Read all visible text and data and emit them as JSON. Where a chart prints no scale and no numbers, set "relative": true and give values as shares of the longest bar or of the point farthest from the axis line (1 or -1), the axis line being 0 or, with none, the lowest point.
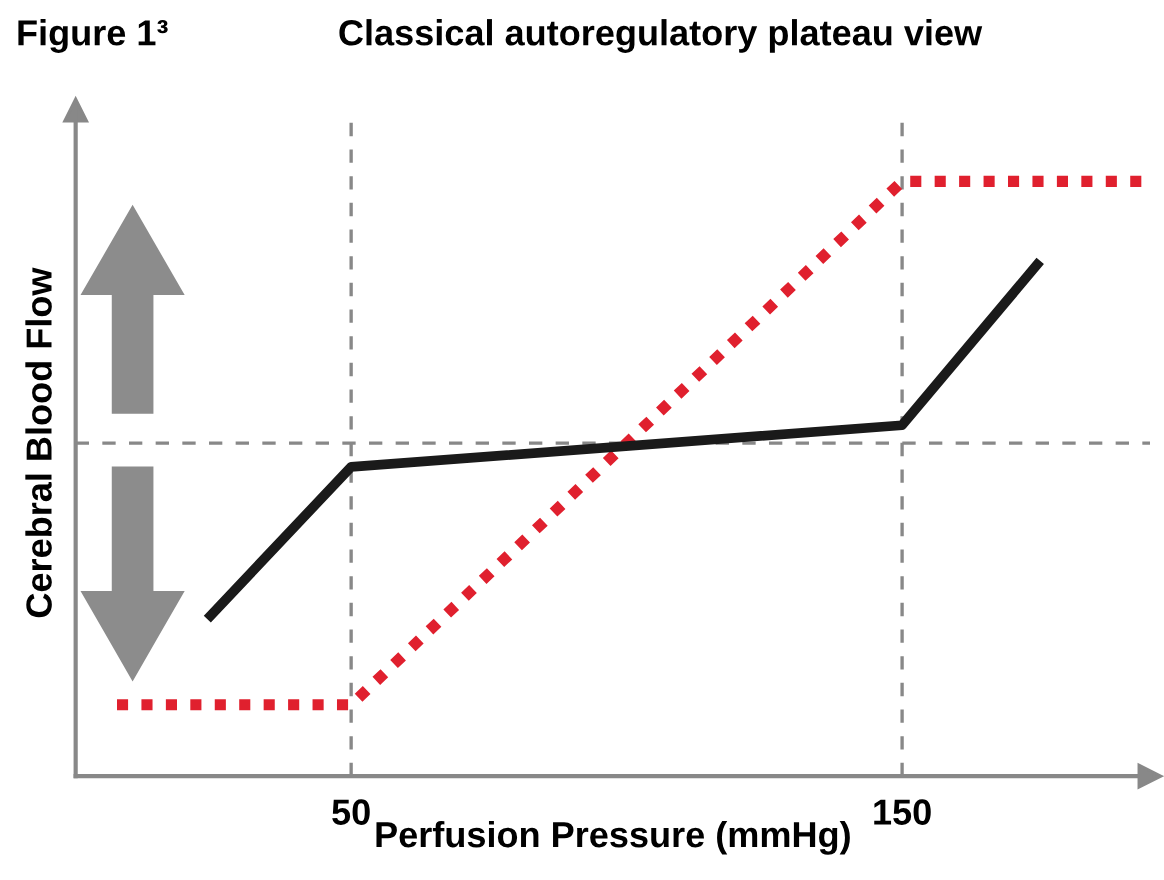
{
  "chart_data": {
    "type": "line",
    "relative": true,
    "title": "Classical autoregulatory plateau view",
    "xlabel": "Perfusion Pressure (mmHg)",
    "ylabel": "Cerebral Blood Flow",
    "annotations": [
      "Figure 1³"
    ],
    "xlim": [
      0,
      195
    ],
    "xticks": [
      50,
      150
    ],
    "grid": false,
    "series": [
      {
        "color": "#e0202e",
        "line_style": "dotted",
        "x": [
          7.5,
          50,
          150,
          193.5
        ],
        "values": [
          0.12,
          0.12,
          1.0,
          1.0
        ]
      },
      {
        "color": "#1a1a1a",
        "line_style": "solid",
        "x": [
          24.5,
          50,
          150,
          174.5
        ],
        "values": [
          0.27,
          0.52,
          0.59,
          0.86
        ]
      }
    ],
    "ref_lines": [
      {
        "axis": "x",
        "value": 50,
        "color": "#888888",
        "line_style": "dashed"
      },
      {
        "axis": "x",
        "value": 150,
        "color": "#888888",
        "line_style": "dashed"
      },
      {
        "axis": "y",
        "value": 0.56,
        "color": "#888888",
        "line_style": "dashed"
      }
    ]
  }
}
